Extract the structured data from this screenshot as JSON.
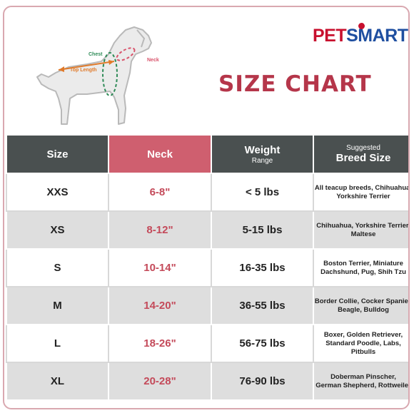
{
  "brand": {
    "part1": "PET",
    "part2": "SMART"
  },
  "title": "SIZE CHART",
  "diagram": {
    "chest": "Chest",
    "neck": "Neck",
    "top_length": "Top Length"
  },
  "colors": {
    "title": "#b5364a",
    "header_dark": "#4a5050",
    "header_neck": "#cf5f6f",
    "neck_text": "#c44a5a"
  },
  "table": {
    "headers": {
      "size": "Size",
      "neck": "Neck",
      "weight": "Weight",
      "weight_sub": "Range",
      "breed_sub": "Suggested",
      "breed": "Breed Size"
    },
    "rows": [
      {
        "size": "XXS",
        "neck": "6-8\"",
        "weight": "< 5 lbs",
        "breed1": "All teacup breeds, Chihuahua,",
        "breed2": "Yorkshire Terrier"
      },
      {
        "size": "XS",
        "neck": "8-12\"",
        "weight": "5-15 lbs",
        "breed1": "Chihuahua, Yorkshire Terrier,",
        "breed2": "Maltese"
      },
      {
        "size": "S",
        "neck": "10-14\"",
        "weight": "16-35 lbs",
        "breed1": "Boston Terrier, Miniature",
        "breed2": "Dachshund, Pug, Shih Tzu"
      },
      {
        "size": "M",
        "neck": "14-20\"",
        "weight": "36-55 lbs",
        "breed1": "Border Collie, Cocker Spaniel,",
        "breed2": "Beagle, Bulldog"
      },
      {
        "size": "L",
        "neck": "18-26\"",
        "weight": "56-75 lbs",
        "breed1": "Boxer, Golden Retriever,",
        "breed2": "Standard Poodle, Labs, Pitbulls"
      },
      {
        "size": "XL",
        "neck": "20-28\"",
        "weight": "76-90 lbs",
        "breed1": "Doberman Pinscher,",
        "breed2": "German Shepherd, Rottweiler"
      }
    ]
  }
}
